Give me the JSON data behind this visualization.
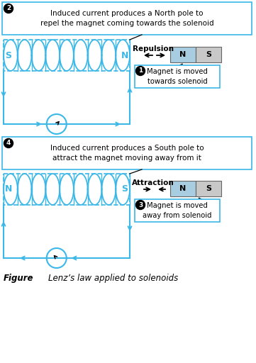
{
  "bg_color": "#ffffff",
  "cyan": "#3BB8E8",
  "label1_text": "Induced current produces a North pole to\nrepel the magnet coming towards the solenoid",
  "label2_text": "Induced current produces a South pole to\nattract the magnet moving away from it",
  "label3_text": "Magnet is moved\ntowards solenoid",
  "label4_text": "Magnet is moved\naway from solenoid",
  "repulsion_text": "Repulsion",
  "attraction_text": "Attraction",
  "figure_label": "Figure",
  "figure_caption": "Lenz’s law applied to solenoids",
  "magnet_N_color": "#a8cce0",
  "magnet_S_color": "#c8c8c8",
  "top_sol_left_label": "S",
  "top_sol_right_label": "N",
  "bot_sol_left_label": "N",
  "bot_sol_right_label": "S"
}
